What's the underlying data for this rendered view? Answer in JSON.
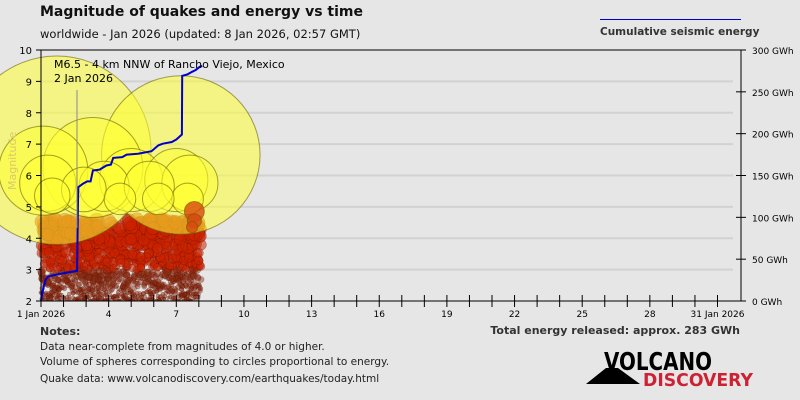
{
  "header": {
    "title": "Magnitude of quakes and energy vs time",
    "subtitle": "worldwide - Jan 2026 (updated: 8 Jan 2026, 02:57 GMT)",
    "legend_label": "Cumulative seismic energy"
  },
  "annotation": {
    "line1": "M6.5 - 4 km NNW of Rancho Viejo, Mexico",
    "line2": "2 Jan 2026"
  },
  "notes": {
    "heading": "Notes:",
    "lines": [
      "Data near-complete from magnitudes of 4.0 or higher.",
      "Volume of spheres corresponding to circles proportional to energy.",
      "Quake data: www.volcanodiscovery.com/earthquakes/today.html"
    ],
    "total": "Total energy released: approx. 283 GWh"
  },
  "logo": {
    "line1": "VOLCANO",
    "line2": "DISCOVERY"
  },
  "colors": {
    "energy": "#0000cc",
    "big": "#ffff33",
    "mid": "#cc2200",
    "small": "#8b2a10",
    "logo_red": "#cc2233"
  },
  "chart_data": {
    "type": "scatter",
    "title": "Magnitude of quakes and energy vs time",
    "ylabel": "Magnitude",
    "y2label": "Cumulative seismic energy (GWh)",
    "xlim": [
      1,
      32
    ],
    "ylim": [
      2,
      10
    ],
    "y2lim": [
      0,
      300
    ],
    "grid": true,
    "legend": "top-right",
    "x_ticks": [
      {
        "v": 1,
        "label": "1 Jan 2026"
      },
      {
        "v": 4,
        "label": "4"
      },
      {
        "v": 7,
        "label": "7"
      },
      {
        "v": 10,
        "label": "10"
      },
      {
        "v": 13,
        "label": "13"
      },
      {
        "v": 16,
        "label": "16"
      },
      {
        "v": 19,
        "label": "19"
      },
      {
        "v": 22,
        "label": "22"
      },
      {
        "v": 25,
        "label": "25"
      },
      {
        "v": 28,
        "label": "28"
      },
      {
        "v": 31,
        "label": "31 Jan 2026"
      }
    ],
    "y_ticks": [
      "2",
      "3",
      "4",
      "5",
      "6",
      "7",
      "8",
      "9",
      "10"
    ],
    "y2_ticks": [
      "0 GWh",
      "50 GWh",
      "100 GWh",
      "150 GWh",
      "200 GWh",
      "250 GWh",
      "300 GWh"
    ],
    "large_quakes": [
      {
        "day": 1.7,
        "mag": 6.55
      },
      {
        "day": 1.1,
        "mag": 5.9
      },
      {
        "day": 1.3,
        "mag": 5.5
      },
      {
        "day": 1.5,
        "mag": 5.1
      },
      {
        "day": 3.3,
        "mag": 6.0
      },
      {
        "day": 2.9,
        "mag": 5.3
      },
      {
        "day": 3.8,
        "mag": 5.4
      },
      {
        "day": 7.2,
        "mag": 6.4
      },
      {
        "day": 5.0,
        "mag": 5.6
      },
      {
        "day": 5.8,
        "mag": 5.4
      },
      {
        "day": 4.5,
        "mag": 5.0
      },
      {
        "day": 7.0,
        "mag": 5.6
      },
      {
        "day": 7.6,
        "mag": 5.5
      },
      {
        "day": 7.5,
        "mag": 5.0
      },
      {
        "day": 6.2,
        "mag": 5.0
      },
      {
        "day": 7.8,
        "mag": 4.6
      },
      {
        "day": 7.8,
        "mag": 4.3
      },
      {
        "day": 7.7,
        "mag": 4.1
      }
    ],
    "energy_series": [
      [
        1.0,
        0
      ],
      [
        1.1,
        15
      ],
      [
        1.2,
        25
      ],
      [
        1.3,
        29
      ],
      [
        1.75,
        32
      ],
      [
        2.6,
        36
      ],
      [
        2.65,
        136
      ],
      [
        2.85,
        140
      ],
      [
        3.05,
        143
      ],
      [
        3.2,
        143
      ],
      [
        3.3,
        156
      ],
      [
        3.6,
        157
      ],
      [
        3.9,
        162
      ],
      [
        4.1,
        163
      ],
      [
        4.2,
        171
      ],
      [
        4.6,
        172
      ],
      [
        4.8,
        175
      ],
      [
        5.3,
        176
      ],
      [
        5.9,
        179
      ],
      [
        6.2,
        186
      ],
      [
        6.4,
        188
      ],
      [
        6.8,
        190
      ],
      [
        7.0,
        193
      ],
      [
        7.25,
        199
      ],
      [
        7.26,
        269
      ],
      [
        7.5,
        271
      ],
      [
        7.7,
        274
      ],
      [
        7.85,
        276
      ],
      [
        8.05,
        280
      ],
      [
        8.15,
        281
      ]
    ],
    "small_quakes_extent_days": [
      1,
      8.1
    ]
  }
}
